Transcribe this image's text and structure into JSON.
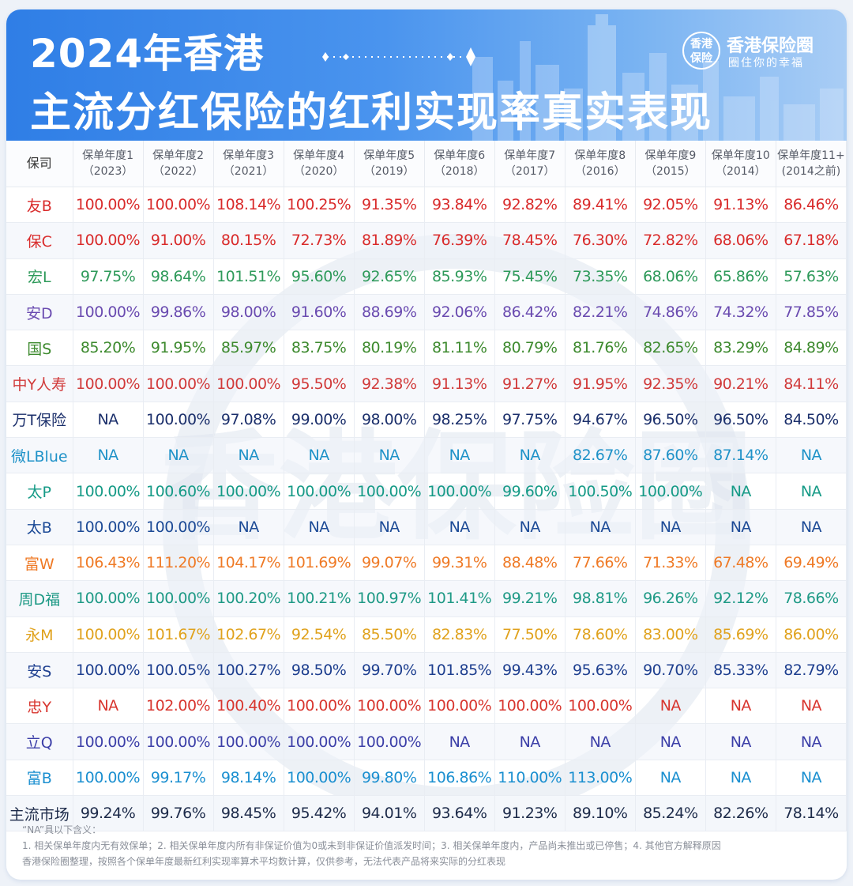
{
  "title_line1": "2024年香港",
  "title_line2": "主流分红保险的红利实现率真实表现",
  "brand": {
    "logo_text_top": "香港",
    "logo_text_bottom": "保险",
    "name": "香港保险圈",
    "slogan": "圈住你的幸福"
  },
  "table": {
    "company_header": "保司",
    "columns": [
      {
        "label": "保单年度1",
        "year": "（2023）"
      },
      {
        "label": "保单年度2",
        "year": "（2022）"
      },
      {
        "label": "保单年度3",
        "year": "（2021）"
      },
      {
        "label": "保单年度4",
        "year": "（2020）"
      },
      {
        "label": "保单年度5",
        "year": "（2019）"
      },
      {
        "label": "保单年度6",
        "year": "（2018）"
      },
      {
        "label": "保单年度7",
        "year": "（2017）"
      },
      {
        "label": "保单年度8",
        "year": "（2016）"
      },
      {
        "label": "保单年度9",
        "year": "（2015）"
      },
      {
        "label": "保单年度10",
        "year": "（2014）"
      },
      {
        "label": "保单年度11+",
        "year": "(2014之前)"
      }
    ],
    "rows": [
      {
        "name": "友B",
        "color": "#d92b2b",
        "values": [
          "100.00%",
          "100.00%",
          "108.14%",
          "100.25%",
          "91.35%",
          "93.84%",
          "92.82%",
          "89.41%",
          "92.05%",
          "91.13%",
          "86.46%"
        ]
      },
      {
        "name": "保C",
        "color": "#d92b2b",
        "values": [
          "100.00%",
          "91.00%",
          "80.15%",
          "72.73%",
          "81.89%",
          "76.39%",
          "78.45%",
          "76.30%",
          "72.82%",
          "68.06%",
          "67.18%"
        ]
      },
      {
        "name": "宏L",
        "color": "#2e9a5a",
        "values": [
          "97.75%",
          "98.64%",
          "101.51%",
          "95.60%",
          "92.65%",
          "85.93%",
          "75.45%",
          "73.35%",
          "68.06%",
          "65.86%",
          "57.63%"
        ]
      },
      {
        "name": "安D",
        "color": "#6a4bb0",
        "values": [
          "100.00%",
          "99.86%",
          "98.00%",
          "91.60%",
          "88.69%",
          "92.06%",
          "86.42%",
          "82.21%",
          "74.86%",
          "74.32%",
          "77.85%"
        ]
      },
      {
        "name": "国S",
        "color": "#3d8a2e",
        "values": [
          "85.20%",
          "91.95%",
          "85.97%",
          "83.75%",
          "80.19%",
          "81.11%",
          "80.79%",
          "81.76%",
          "82.65%",
          "83.29%",
          "84.89%"
        ]
      },
      {
        "name": "中Y人寿",
        "color": "#d13a3a",
        "values": [
          "100.00%",
          "100.00%",
          "100.00%",
          "95.50%",
          "92.38%",
          "91.13%",
          "91.27%",
          "91.95%",
          "92.35%",
          "90.21%",
          "84.11%"
        ]
      },
      {
        "name": "万T保险",
        "color": "#1b2f6b",
        "values": [
          "NA",
          "100.00%",
          "97.08%",
          "99.00%",
          "98.00%",
          "98.25%",
          "97.75%",
          "94.67%",
          "96.50%",
          "96.50%",
          "84.50%"
        ]
      },
      {
        "name": "微LBlue",
        "color": "#1f92c8",
        "values": [
          "NA",
          "NA",
          "NA",
          "NA",
          "NA",
          "NA",
          "NA",
          "82.67%",
          "87.60%",
          "87.14%",
          "NA"
        ]
      },
      {
        "name": "太P",
        "color": "#159a86",
        "values": [
          "100.00%",
          "100.60%",
          "100.00%",
          "100.00%",
          "100.00%",
          "100.00%",
          "99.60%",
          "100.50%",
          "100.00%",
          "NA",
          "NA"
        ]
      },
      {
        "name": "太B",
        "color": "#1c4a96",
        "values": [
          "100.00%",
          "100.00%",
          "NA",
          "NA",
          "NA",
          "NA",
          "NA",
          "NA",
          "NA",
          "NA",
          "NA"
        ]
      },
      {
        "name": "富W",
        "color": "#ef7a26",
        "values": [
          "106.43%",
          "111.20%",
          "104.17%",
          "101.69%",
          "99.07%",
          "99.31%",
          "88.48%",
          "77.66%",
          "71.33%",
          "67.48%",
          "69.49%"
        ]
      },
      {
        "name": "周D福",
        "color": "#1f9a86",
        "values": [
          "100.00%",
          "100.00%",
          "100.20%",
          "100.21%",
          "100.97%",
          "101.41%",
          "99.21%",
          "98.81%",
          "96.26%",
          "92.12%",
          "78.66%"
        ]
      },
      {
        "name": "永M",
        "color": "#e0a21d",
        "values": [
          "100.00%",
          "101.67%",
          "102.67%",
          "92.54%",
          "85.50%",
          "82.83%",
          "77.50%",
          "78.60%",
          "83.00%",
          "85.69%",
          "86.00%"
        ]
      },
      {
        "name": "安S",
        "color": "#1e3f8f",
        "values": [
          "100.00%",
          "100.05%",
          "100.27%",
          "98.50%",
          "99.70%",
          "101.85%",
          "99.43%",
          "95.63%",
          "90.70%",
          "85.33%",
          "82.79%"
        ]
      },
      {
        "name": "忠Y",
        "color": "#d8352e",
        "values": [
          "NA",
          "102.00%",
          "100.40%",
          "100.00%",
          "100.00%",
          "100.00%",
          "100.00%",
          "100.00%",
          "NA",
          "NA",
          "NA"
        ]
      },
      {
        "name": "立Q",
        "color": "#3c3fa8",
        "values": [
          "100.00%",
          "100.00%",
          "100.00%",
          "100.00%",
          "100.00%",
          "NA",
          "NA",
          "NA",
          "NA",
          "NA",
          "NA"
        ]
      },
      {
        "name": "富B",
        "color": "#1a8fd0",
        "values": [
          "100.00%",
          "99.17%",
          "98.14%",
          "100.00%",
          "99.80%",
          "106.86%",
          "110.00%",
          "113.00%",
          "NA",
          "NA",
          "NA"
        ]
      }
    ],
    "market_row": {
      "name": "主流市场",
      "color": "#1d2b4a",
      "values": [
        "99.24%",
        "99.76%",
        "98.45%",
        "95.42%",
        "94.01%",
        "93.64%",
        "91.23%",
        "89.10%",
        "85.24%",
        "82.26%",
        "78.14%"
      ]
    }
  },
  "notes": {
    "title": "“NA”具以下含义：",
    "line1": "1. 相关保单年度内无有效保单；2. 相关保单年度内所有非保证价值为0或未到非保证价值派发时间；3. 相关保单年度内，产品尚未推出或已停售；4. 其他官方解释原因",
    "line2": "香港保险圈整理，按照各个保单年度最新红利实现率算术平均数计算，仅供参考，无法代表产品将来实际的分红表现"
  },
  "watermark_text": "香港保险圈"
}
